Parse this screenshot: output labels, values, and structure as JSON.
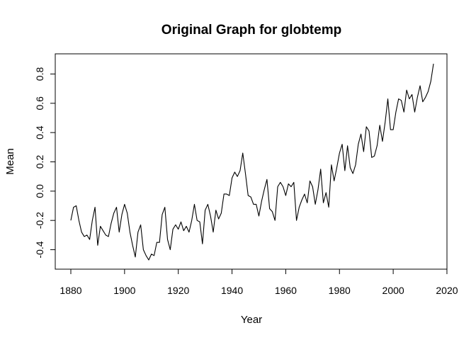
{
  "chart_data": {
    "type": "line",
    "title": "Original Graph for globtemp",
    "xlabel": "Year",
    "ylabel": "Mean",
    "xlim": [
      1880,
      2015
    ],
    "ylim": [
      -0.47,
      0.87
    ],
    "xticks": [
      1880,
      1900,
      1920,
      1940,
      1960,
      1980,
      2000,
      2020
    ],
    "xtick_labels": [
      "1880",
      "1900",
      "1920",
      "1940",
      "1960",
      "1980",
      "2000",
      "2020"
    ],
    "yticks": [
      -0.4,
      -0.2,
      0.0,
      0.2,
      0.4,
      0.6,
      0.8
    ],
    "ytick_labels": [
      "-0.4",
      "-0.2",
      "0.0",
      "0.2",
      "0.4",
      "0.6",
      "0.8"
    ],
    "grid": false,
    "line_color": "#000000",
    "series": [
      {
        "x": [
          1880,
          1881,
          1882,
          1883,
          1884,
          1885,
          1886,
          1887,
          1888,
          1889,
          1890,
          1891,
          1892,
          1893,
          1894,
          1895,
          1896,
          1897,
          1898,
          1899,
          1900,
          1901,
          1902,
          1903,
          1904,
          1905,
          1906,
          1907,
          1908,
          1909,
          1910,
          1911,
          1912,
          1913,
          1914,
          1915,
          1916,
          1917,
          1918,
          1919,
          1920,
          1921,
          1922,
          1923,
          1924,
          1925,
          1926,
          1927,
          1928,
          1929,
          1930,
          1931,
          1932,
          1933,
          1934,
          1935,
          1936,
          1937,
          1938,
          1939,
          1940,
          1941,
          1942,
          1943,
          1944,
          1945,
          1946,
          1947,
          1948,
          1949,
          1950,
          1951,
          1952,
          1953,
          1954,
          1955,
          1956,
          1957,
          1958,
          1959,
          1960,
          1961,
          1962,
          1963,
          1964,
          1965,
          1966,
          1967,
          1968,
          1969,
          1970,
          1971,
          1972,
          1973,
          1974,
          1975,
          1976,
          1977,
          1978,
          1979,
          1980,
          1981,
          1982,
          1983,
          1984,
          1985,
          1986,
          1987,
          1988,
          1989,
          1990,
          1991,
          1992,
          1993,
          1994,
          1995,
          1996,
          1997,
          1998,
          1999,
          2000,
          2001,
          2002,
          2003,
          2004,
          2005,
          2006,
          2007,
          2008,
          2009,
          2010,
          2011,
          2012,
          2013,
          2014,
          2015
        ],
        "values": [
          -0.2,
          -0.11,
          -0.1,
          -0.2,
          -0.28,
          -0.31,
          -0.3,
          -0.33,
          -0.2,
          -0.11,
          -0.37,
          -0.24,
          -0.27,
          -0.3,
          -0.31,
          -0.22,
          -0.15,
          -0.11,
          -0.28,
          -0.16,
          -0.09,
          -0.15,
          -0.28,
          -0.37,
          -0.45,
          -0.28,
          -0.23,
          -0.4,
          -0.44,
          -0.47,
          -0.43,
          -0.44,
          -0.35,
          -0.35,
          -0.16,
          -0.11,
          -0.33,
          -0.4,
          -0.26,
          -0.23,
          -0.26,
          -0.21,
          -0.27,
          -0.24,
          -0.28,
          -0.2,
          -0.09,
          -0.2,
          -0.21,
          -0.36,
          -0.13,
          -0.09,
          -0.17,
          -0.28,
          -0.13,
          -0.19,
          -0.15,
          -0.02,
          -0.02,
          -0.03,
          0.09,
          0.13,
          0.1,
          0.14,
          0.26,
          0.12,
          -0.03,
          -0.04,
          -0.09,
          -0.09,
          -0.17,
          -0.07,
          0.01,
          0.08,
          -0.12,
          -0.14,
          -0.2,
          0.03,
          0.06,
          0.03,
          -0.03,
          0.05,
          0.03,
          0.06,
          -0.2,
          -0.11,
          -0.06,
          -0.02,
          -0.08,
          0.07,
          0.03,
          -0.09,
          0.01,
          0.15,
          -0.08,
          -0.01,
          -0.11,
          0.18,
          0.07,
          0.16,
          0.26,
          0.32,
          0.14,
          0.31,
          0.16,
          0.12,
          0.18,
          0.32,
          0.39,
          0.27,
          0.44,
          0.41,
          0.23,
          0.24,
          0.31,
          0.45,
          0.34,
          0.47,
          0.63,
          0.42,
          0.42,
          0.54,
          0.63,
          0.62,
          0.54,
          0.69,
          0.63,
          0.66,
          0.54,
          0.64,
          0.72,
          0.61,
          0.64,
          0.68,
          0.75,
          0.87
        ]
      }
    ]
  }
}
